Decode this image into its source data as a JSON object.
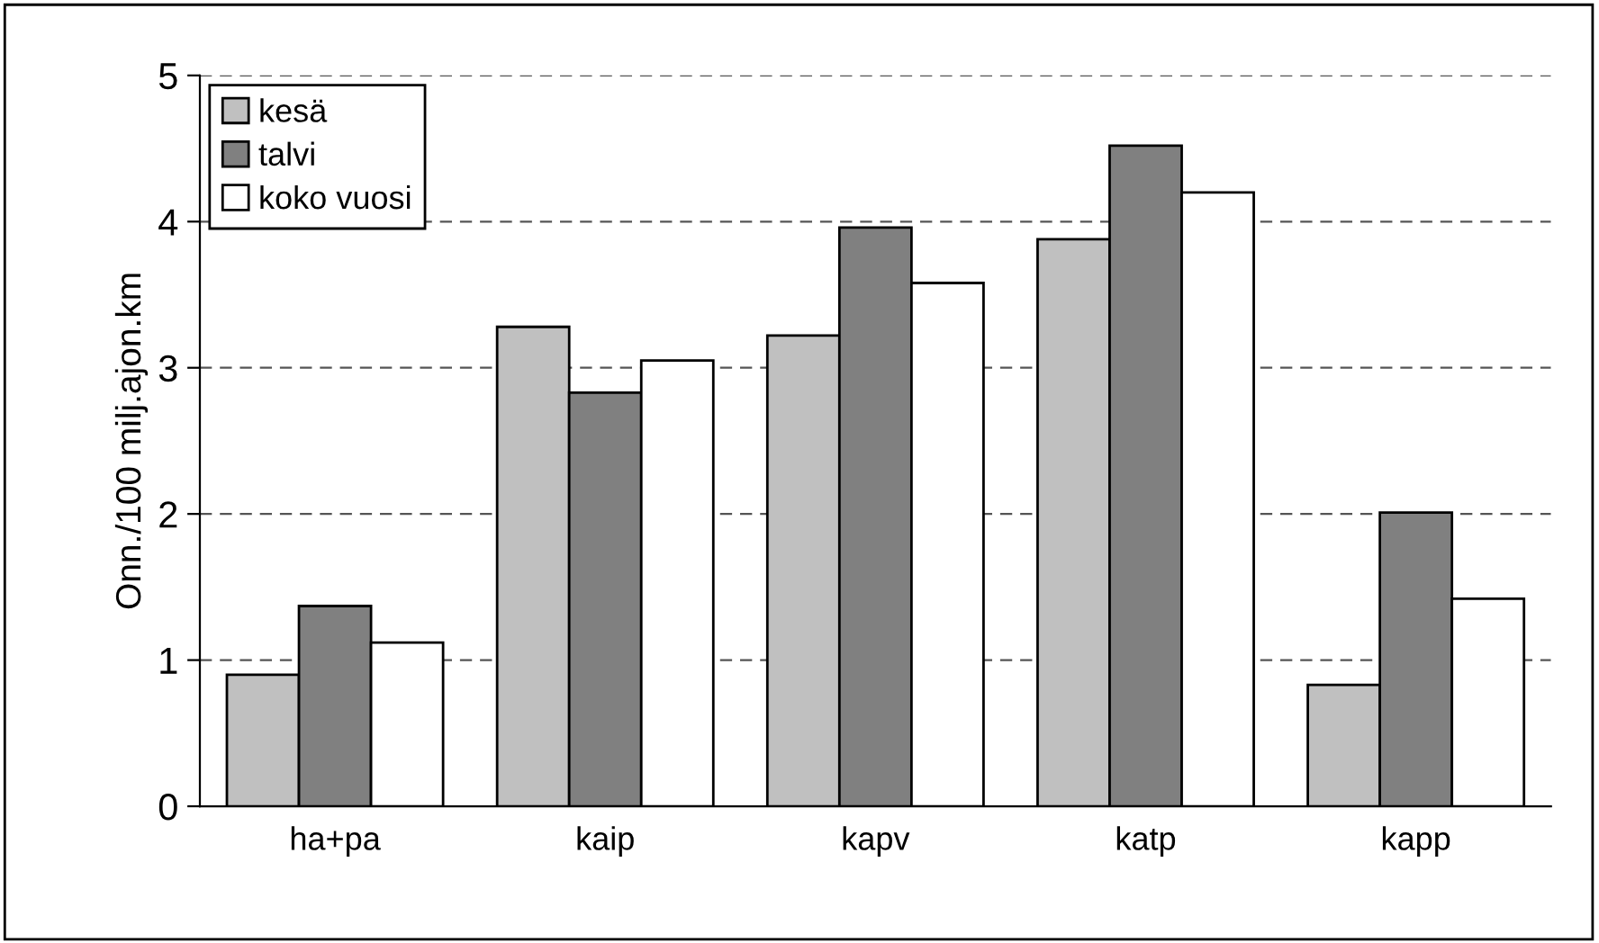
{
  "chart_data": {
    "type": "bar",
    "ylabel": "Onn./100 milj.ajon.km",
    "categories": [
      "ha+pa",
      "kaip",
      "kapv",
      "katp",
      "kapp"
    ],
    "series": [
      {
        "name": "kesä",
        "color": "#c0c0c0",
        "values": [
          0.9,
          3.28,
          3.22,
          3.88,
          0.83
        ]
      },
      {
        "name": "talvi",
        "color": "#808080",
        "values": [
          1.37,
          2.83,
          3.96,
          4.52,
          2.01
        ]
      },
      {
        "name": "koko vuosi",
        "color": "#ffffff",
        "values": [
          1.12,
          3.05,
          3.58,
          4.2,
          1.42
        ]
      }
    ],
    "ylim": [
      0,
      5
    ],
    "yticks": [
      0,
      1,
      2,
      3,
      4,
      5
    ],
    "grid": "y",
    "line_style": "dashed",
    "legend": "top left"
  }
}
